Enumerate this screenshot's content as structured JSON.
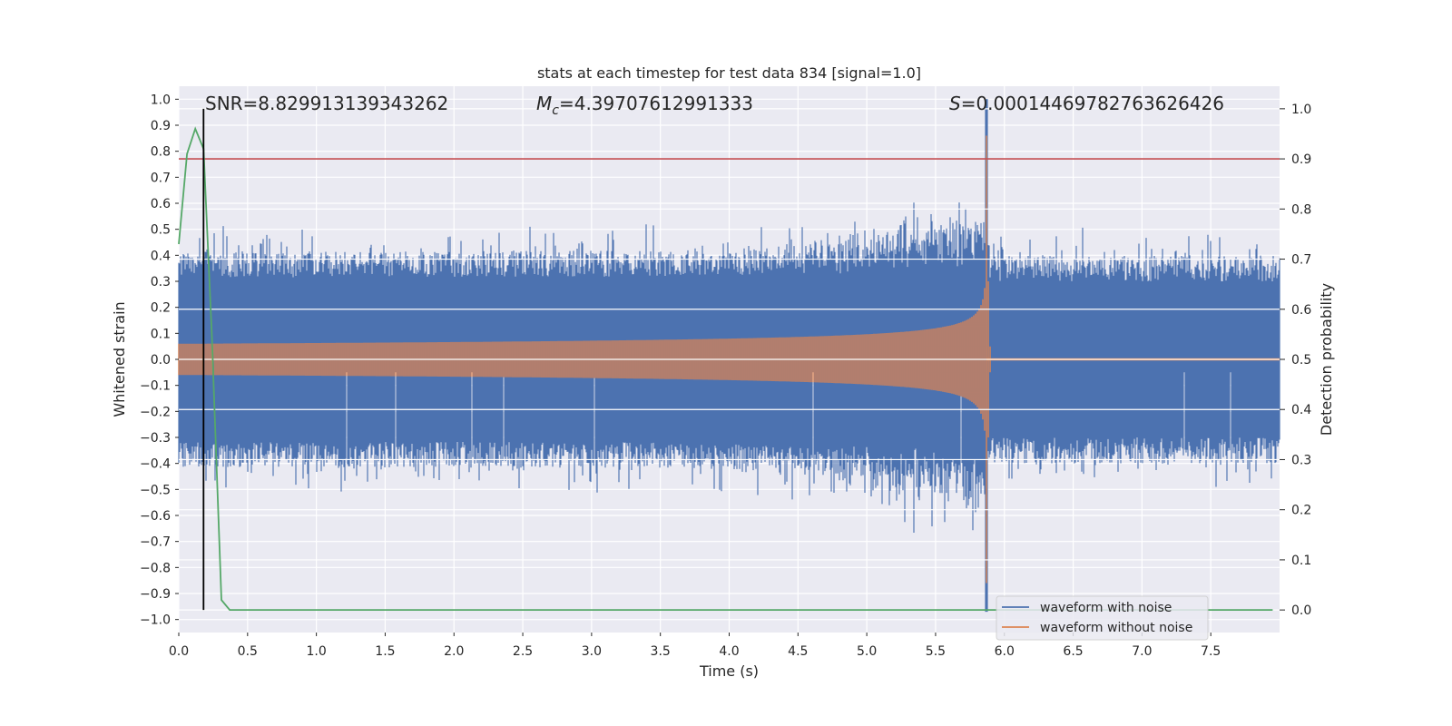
{
  "chart_data": {
    "type": "line",
    "title": "stats at each timestep for test data 834 [signal=1.0]",
    "xlabel": "Time (s)",
    "ylabel": "Whitened strain",
    "y2label": "Detection probability",
    "xlim": [
      0.0,
      8.0
    ],
    "ylim": [
      -1.05,
      1.05
    ],
    "y2lim": [
      -0.045,
      1.045
    ],
    "xticks": [
      "0.0",
      "0.5",
      "1.0",
      "1.5",
      "2.0",
      "2.5",
      "3.0",
      "3.5",
      "4.0",
      "4.5",
      "5.0",
      "5.5",
      "6.0",
      "6.5",
      "7.0",
      "7.5"
    ],
    "yticks": [
      "1.0",
      "0.9",
      "0.8",
      "0.7",
      "0.6",
      "0.5",
      "0.4",
      "0.3",
      "0.2",
      "0.1",
      "0.0",
      "−0.1",
      "−0.2",
      "−0.3",
      "−0.4",
      "−0.5",
      "−0.6",
      "−0.7",
      "−0.8",
      "−0.9",
      "−1.0"
    ],
    "y2ticks": [
      "1.0",
      "0.9",
      "0.8",
      "0.7",
      "0.6",
      "0.5",
      "0.4",
      "0.3",
      "0.2",
      "0.1",
      "0.0"
    ],
    "annotations": {
      "snr": "SNR=8.829913139343262",
      "mc_symbol": "M",
      "mc_sub": "c",
      "mc_value": "=4.39707612991333",
      "s_symbol": "S",
      "s_value": "=0.00014469782763626426"
    },
    "marker_time": 0.18,
    "merger_time": 5.87,
    "threshold_probability": 0.9,
    "series": [
      {
        "name": "waveform with noise",
        "color": "#4c72b0",
        "typical_amplitude": 0.4,
        "peak_amplitude": 1.0
      },
      {
        "name": "waveform without noise",
        "color": "#dd8452",
        "start_amplitude": 0.06,
        "peak_amplitude": 0.85
      },
      {
        "name": "Detection probability",
        "color": "#55a868",
        "x": [
          0.0,
          0.06,
          0.12,
          0.18,
          0.24,
          0.31,
          0.37,
          7.95
        ],
        "y": [
          0.73,
          0.91,
          0.96,
          0.92,
          0.55,
          0.02,
          0.0,
          0.0
        ]
      },
      {
        "name": "threshold",
        "color": "#c44e52",
        "value": 0.9
      }
    ],
    "legend": {
      "position": "lower-right",
      "entries": [
        "waveform with noise",
        "waveform without noise"
      ]
    }
  }
}
